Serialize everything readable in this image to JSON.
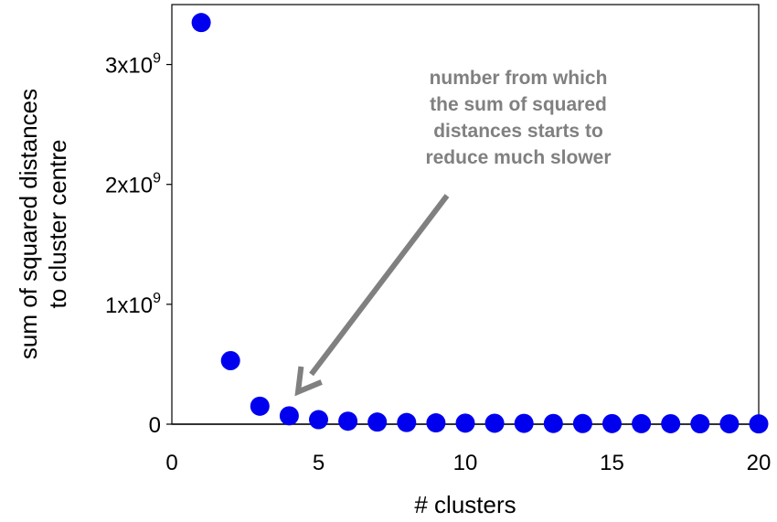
{
  "chart_data": {
    "type": "scatter",
    "xlabel": "# clusters",
    "ylabel_lines": [
      "sum of squared distances",
      "to cluster centre"
    ],
    "xlim": [
      0,
      20
    ],
    "ylim": [
      0,
      3500000000
    ],
    "x_ticks": [
      {
        "value": 0,
        "label": "0"
      },
      {
        "value": 5,
        "label": "5"
      },
      {
        "value": 10,
        "label": "10"
      },
      {
        "value": 15,
        "label": "15"
      },
      {
        "value": 20,
        "label": "20"
      }
    ],
    "y_ticks": [
      {
        "value": 0,
        "base": "0",
        "exp": ""
      },
      {
        "value": 1000000000,
        "base": "1x10",
        "exp": "9"
      },
      {
        "value": 2000000000,
        "base": "2x10",
        "exp": "9"
      },
      {
        "value": 3000000000,
        "base": "3x10",
        "exp": "9"
      }
    ],
    "grid": false,
    "series": [
      {
        "color": "#0000ee",
        "x": [
          1,
          2,
          3,
          4,
          5,
          6,
          7,
          8,
          9,
          10,
          11,
          12,
          13,
          14,
          15,
          16,
          17,
          18,
          19,
          20
        ],
        "y": [
          3350000000,
          530000000,
          150000000,
          70000000,
          38000000,
          25000000,
          18000000,
          14000000,
          11000000,
          9000000,
          8000000,
          7000000,
          6000000,
          5500000,
          5000000,
          4500000,
          4000000,
          3500000,
          3000000,
          2500000
        ]
      }
    ],
    "annotations": [
      {
        "lines": [
          "number from which",
          "the sum of squared",
          "distances starts to",
          "reduce much slower"
        ],
        "color": "#808080",
        "arrow_target": {
          "x": 4.3,
          "y": 270000000
        }
      }
    ]
  }
}
